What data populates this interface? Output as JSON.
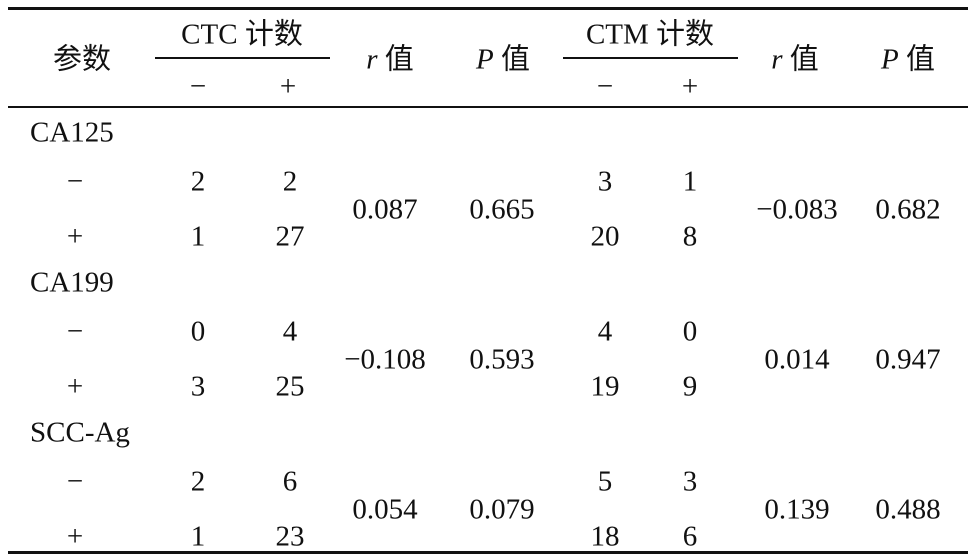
{
  "header": {
    "param": "参数",
    "ctc": "CTC 计数",
    "ctm": "CTM 计数",
    "r_symbol": "r",
    "p_symbol": "P",
    "suffix": "值",
    "neg": "−",
    "pos": "+"
  },
  "groups": [
    {
      "name": "CA125",
      "rows": [
        {
          "sign": "−",
          "ctc": [
            "2",
            "2"
          ],
          "ctm": [
            "3",
            "1"
          ]
        },
        {
          "sign": "+",
          "ctc": [
            "1",
            "27"
          ],
          "ctm": [
            "20",
            "8"
          ]
        }
      ],
      "ctc_r": "0.087",
      "ctc_p": "0.665",
      "ctm_r": "−0.083",
      "ctm_p": "0.682"
    },
    {
      "name": "CA199",
      "rows": [
        {
          "sign": "−",
          "ctc": [
            "0",
            "4"
          ],
          "ctm": [
            "4",
            "0"
          ]
        },
        {
          "sign": "+",
          "ctc": [
            "3",
            "25"
          ],
          "ctm": [
            "19",
            "9"
          ]
        }
      ],
      "ctc_r": "−0.108",
      "ctc_p": "0.593",
      "ctm_r": "0.014",
      "ctm_p": "0.947"
    },
    {
      "name": "SCC-Ag",
      "rows": [
        {
          "sign": "−",
          "ctc": [
            "2",
            "6"
          ],
          "ctm": [
            "5",
            "3"
          ]
        },
        {
          "sign": "+",
          "ctc": [
            "1",
            "23"
          ],
          "ctm": [
            "18",
            "6"
          ]
        }
      ],
      "ctc_r": "0.054",
      "ctc_p": "0.079",
      "ctm_r": "0.139",
      "ctm_p": "0.488"
    }
  ]
}
